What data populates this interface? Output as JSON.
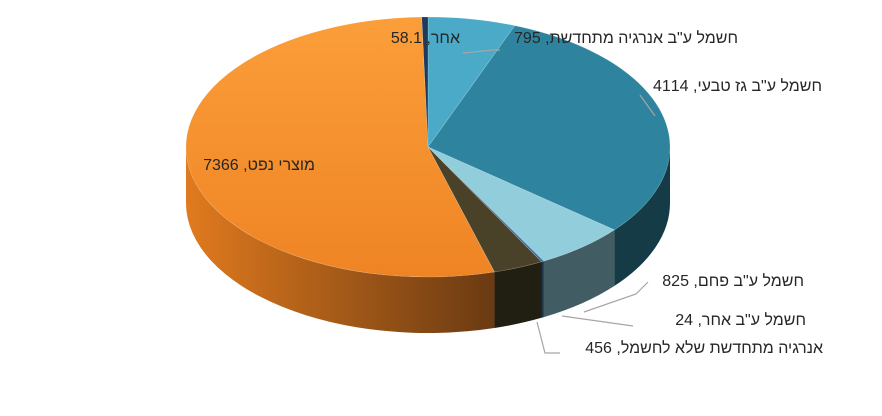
{
  "chart_data": {
    "type": "pie",
    "style": "3d",
    "title": "",
    "unit": "",
    "slices": [
      {
        "name": "אחר",
        "value": 58.1,
        "label": "אחר, 58.1",
        "color": "#1f3a5a"
      },
      {
        "name": "חשמל ע\"ב אנרגיה מתחדשת",
        "value": 795,
        "label": "חשמל ע\"ב אנרגיה מתחדשת, 795",
        "color": "#4aaac8"
      },
      {
        "name": "חשמל ע\"ב גז טבעי",
        "value": 4114,
        "label": "חשמל ע\"ב גז טבעי, 4114",
        "color": "#2e849e"
      },
      {
        "name": "חשמל ע\"ב פחם",
        "value": 825,
        "label": "חשמל ע\"ב פחם, 825",
        "color": "#92cddc"
      },
      {
        "name": "חשמל ע\"ב אחר",
        "value": 24,
        "label": "חשמל ע\"ב אחר, 24",
        "color": "#3b6fa0"
      },
      {
        "name": "אנרגיה מתחדשת שלא לחשמל",
        "value": 456,
        "label": "אנרגיה מתחדשת שלא לחשמל, 456",
        "color": "#4a4228"
      },
      {
        "name": "מוצרי נפט",
        "value": 7366,
        "label": "מוצרי נפט, 7366",
        "color": "#f59331"
      }
    ]
  }
}
